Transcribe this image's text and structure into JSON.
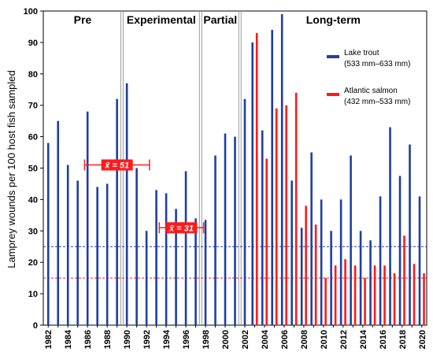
{
  "chart_data": {
    "type": "bar",
    "title": "",
    "xlabel": "",
    "ylabel": "Lamprey wounds per 100 host fish sampled",
    "ylim": [
      0,
      100
    ],
    "yticks": [
      0,
      10,
      20,
      30,
      40,
      50,
      60,
      70,
      80,
      90,
      100
    ],
    "xlim": [
      1982,
      2020
    ],
    "xtick_labels": [
      "1982",
      "1984",
      "1986",
      "1988",
      "1990",
      "1992",
      "1994",
      "1996",
      "1998",
      "2000",
      "2002",
      "2004",
      "2006",
      "2008",
      "2010",
      "2012",
      "2014",
      "2016",
      "2018",
      "2020"
    ],
    "grid": false,
    "legend_position": "top-right",
    "colors": {
      "lake_trout": "#1f3fa0",
      "atlantic_salmon": "#ff1a1a",
      "reference_blue": "#1f3fa0",
      "reference_red": "#ff1a1a",
      "mean_box": "#ff1a1a",
      "phase_divider": "#9a9a9a"
    },
    "series": [
      {
        "name": "Lake trout",
        "name_detail": "(533 mm–633 mm)",
        "color": "#1f3fa0",
        "points": [
          {
            "x": 1982,
            "y": 58
          },
          {
            "x": 1983,
            "y": 65
          },
          {
            "x": 1984,
            "y": 51
          },
          {
            "x": 1985,
            "y": 46
          },
          {
            "x": 1986,
            "y": 68
          },
          {
            "x": 1987,
            "y": 44
          },
          {
            "x": 1988,
            "y": 45
          },
          {
            "x": 1989,
            "y": 72
          },
          {
            "x": 1990,
            "y": 77
          },
          {
            "x": 1991,
            "y": 50
          },
          {
            "x": 1992,
            "y": 30
          },
          {
            "x": 1993,
            "y": 43
          },
          {
            "x": 1994,
            "y": 42
          },
          {
            "x": 1995,
            "y": 37
          },
          {
            "x": 1996,
            "y": 49
          },
          {
            "x": 1997,
            "y": 34
          },
          {
            "x": 1998,
            "y": 33.5
          },
          {
            "x": 1999,
            "y": 54
          },
          {
            "x": 2000,
            "y": 61
          },
          {
            "x": 2001,
            "y": 60
          },
          {
            "x": 2002,
            "y": 72
          },
          {
            "x": 2003,
            "y": 90
          },
          {
            "x": 2004,
            "y": 62
          },
          {
            "x": 2005,
            "y": 94
          },
          {
            "x": 2006,
            "y": 99
          },
          {
            "x": 2007,
            "y": 46
          },
          {
            "x": 2008,
            "y": 31
          },
          {
            "x": 2009,
            "y": 55
          },
          {
            "x": 2010,
            "y": 40
          },
          {
            "x": 2011,
            "y": 30
          },
          {
            "x": 2012,
            "y": 40
          },
          {
            "x": 2013,
            "y": 54
          },
          {
            "x": 2014,
            "y": 30
          },
          {
            "x": 2015,
            "y": 27
          },
          {
            "x": 2016,
            "y": 41
          },
          {
            "x": 2017,
            "y": 63
          },
          {
            "x": 2018,
            "y": 47.5
          },
          {
            "x": 2019,
            "y": 57.5
          },
          {
            "x": 2020,
            "y": 41
          }
        ]
      },
      {
        "name": "Atlantic salmon",
        "name_detail": "(432 mm–533 mm)",
        "color": "#ff1a1a",
        "points": [
          {
            "x": 2003,
            "y": 93
          },
          {
            "x": 2004,
            "y": 53
          },
          {
            "x": 2005,
            "y": 69
          },
          {
            "x": 2006,
            "y": 70
          },
          {
            "x": 2007,
            "y": 74
          },
          {
            "x": 2008,
            "y": 38
          },
          {
            "x": 2009,
            "y": 32
          },
          {
            "x": 2010,
            "y": 15
          },
          {
            "x": 2011,
            "y": 19
          },
          {
            "x": 2012,
            "y": 21
          },
          {
            "x": 2013,
            "y": 19
          },
          {
            "x": 2014,
            "y": 15
          },
          {
            "x": 2015,
            "y": 19
          },
          {
            "x": 2016,
            "y": 19
          },
          {
            "x": 2017,
            "y": 16.5
          },
          {
            "x": 2018,
            "y": 28.5
          },
          {
            "x": 2019,
            "y": 19.5
          },
          {
            "x": 2020,
            "y": 16.5
          }
        ]
      }
    ],
    "reference_lines": [
      {
        "y": 25,
        "color": "#1f3fa0",
        "style": "dashed"
      },
      {
        "y": 15,
        "color": "#ff1a1a",
        "style": "dashed"
      }
    ],
    "phases": [
      {
        "label": "Pre",
        "start": 1981.5,
        "end": 1989.5
      },
      {
        "label": "Experimental",
        "start": 1989.5,
        "end": 1997.5
      },
      {
        "label": "Partial",
        "start": 1997.5,
        "end": 2001.5
      },
      {
        "label": "Long-term",
        "start": 2001.5,
        "end": 2020.5
      }
    ],
    "means": [
      {
        "label": "x̄ = 51",
        "value": 51,
        "x_from": 1985.7,
        "x_to": 1992.3
      },
      {
        "label": "x̄ = 31",
        "value": 31,
        "x_from": 1993.3,
        "x_to": 1997.8
      }
    ]
  }
}
